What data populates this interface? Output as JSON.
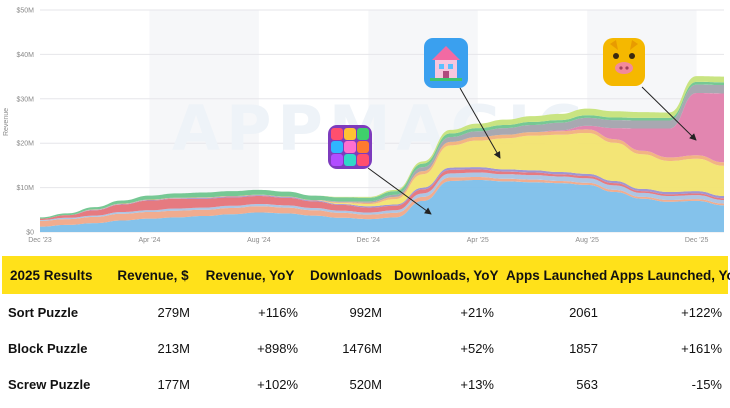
{
  "chart_data": {
    "type": "area",
    "stacked": true,
    "ylabel": "Revenue",
    "ylim": [
      0,
      50
    ],
    "yticks": [
      "$0",
      "$10M",
      "$20M",
      "$30M",
      "$40M",
      "$50M"
    ],
    "xticks": [
      "Dec '23",
      "Apr '24",
      "Aug '24",
      "Dec '24",
      "Apr '25",
      "Aug '25",
      "Dec '25"
    ],
    "watermark": "APPMAGIC",
    "grid": true,
    "x": [
      "Dec '23",
      "Jan '24",
      "Feb '24",
      "Mar '24",
      "Apr '24",
      "May '24",
      "Jun '24",
      "Jul '24",
      "Aug '24",
      "Sep '24",
      "Oct '24",
      "Nov '24",
      "Dec '24",
      "Jan '25",
      "Feb '25",
      "Mar '25",
      "Apr '25",
      "May '25",
      "Jun '25",
      "Jul '25",
      "Aug '25",
      "Sep '25",
      "Oct '25",
      "Nov '25",
      "Dec '25",
      "Jan '26"
    ],
    "series": [
      {
        "color": "#7dbfea",
        "values": [
          1.2,
          1.6,
          2.0,
          2.6,
          3.0,
          3.3,
          3.6,
          4.0,
          4.4,
          4.2,
          3.7,
          3.2,
          2.9,
          3.3,
          7.0,
          11.5,
          11.7,
          11.4,
          11.2,
          11.0,
          10.6,
          9.0,
          7.5,
          6.8,
          7.0,
          6.0
        ]
      },
      {
        "color": "#f0a889",
        "values": [
          1.3,
          1.3,
          1.4,
          1.5,
          1.5,
          1.5,
          1.4,
          1.4,
          1.4,
          1.3,
          1.2,
          1.1,
          1.0,
          1.0,
          0.9,
          0.8,
          0.7,
          0.6,
          0.6,
          0.5,
          0.5,
          0.5,
          0.4,
          0.4,
          0.4,
          0.4
        ]
      },
      {
        "color": "#a9c3e3",
        "values": [
          0.2,
          0.3,
          0.3,
          0.4,
          0.4,
          0.5,
          0.5,
          0.5,
          0.5,
          0.5,
          0.5,
          0.5,
          0.5,
          0.6,
          0.8,
          0.9,
          1.0,
          1.0,
          1.0,
          1.0,
          1.0,
          1.0,
          0.9,
          0.9,
          0.9,
          0.8
        ]
      },
      {
        "color": "#e57379",
        "values": [
          0.3,
          0.6,
          1.2,
          1.7,
          2.2,
          2.2,
          2.0,
          1.9,
          1.8,
          1.7,
          1.5,
          1.3,
          1.1,
          1.0,
          0.9,
          0.8,
          0.7,
          0.6,
          0.6,
          0.5,
          0.5,
          0.5,
          0.4,
          0.4,
          0.4,
          0.4
        ]
      },
      {
        "color": "#9b90d0",
        "values": [
          0.0,
          0.0,
          0.1,
          0.1,
          0.1,
          0.1,
          0.2,
          0.2,
          0.2,
          0.2,
          0.2,
          0.2,
          0.3,
          0.3,
          0.4,
          0.5,
          0.5,
          0.5,
          0.5,
          0.5,
          0.5,
          0.5,
          0.5,
          0.5,
          0.5,
          0.5
        ]
      },
      {
        "color": "#f2e46f",
        "values": [
          0.0,
          0.0,
          0.0,
          0.0,
          0.0,
          0.0,
          0.0,
          0.0,
          0.0,
          0.0,
          0.0,
          0.2,
          0.5,
          1.2,
          3.0,
          5.0,
          6.0,
          7.0,
          7.8,
          8.4,
          9.2,
          8.6,
          7.8,
          7.0,
          7.3,
          6.8
        ]
      },
      {
        "color": "#f1b07c",
        "values": [
          0.0,
          0.0,
          0.1,
          0.1,
          0.1,
          0.1,
          0.1,
          0.1,
          0.1,
          0.1,
          0.1,
          0.2,
          0.3,
          0.5,
          0.7,
          0.8,
          0.8,
          0.8,
          0.8,
          0.8,
          0.8,
          0.8,
          0.8,
          0.8,
          0.8,
          0.8
        ]
      },
      {
        "color": "#e07fac",
        "values": [
          0.0,
          0.0,
          0.0,
          0.0,
          0.0,
          0.0,
          0.0,
          0.0,
          0.0,
          0.0,
          0.0,
          0.0,
          0.0,
          0.0,
          0.0,
          0.0,
          0.0,
          0.0,
          0.0,
          0.2,
          0.8,
          2.5,
          5.0,
          6.5,
          14.0,
          15.5
        ]
      },
      {
        "color": "#a3a3ad",
        "values": [
          0.0,
          0.0,
          0.0,
          0.0,
          0.0,
          0.0,
          0.0,
          0.0,
          0.0,
          0.0,
          0.0,
          0.2,
          0.3,
          0.5,
          0.9,
          1.1,
          1.3,
          1.5,
          1.6,
          1.7,
          1.8,
          1.8,
          1.8,
          1.8,
          1.9,
          1.9
        ]
      },
      {
        "color": "#6fc58e",
        "values": [
          0.3,
          0.4,
          0.5,
          0.7,
          0.9,
          1.0,
          1.1,
          1.1,
          1.1,
          1.1,
          1.0,
          0.9,
          0.8,
          0.8,
          0.8,
          0.8,
          0.7,
          0.7,
          0.7,
          0.6,
          0.6,
          0.6,
          0.6,
          0.6,
          0.6,
          0.6
        ]
      },
      {
        "color": "#c6e37a",
        "values": [
          0.0,
          0.0,
          0.0,
          0.0,
          0.0,
          0.0,
          0.0,
          0.0,
          0.0,
          0.0,
          0.0,
          0.1,
          0.2,
          0.3,
          0.5,
          0.8,
          1.0,
          1.2,
          1.3,
          1.4,
          1.5,
          1.4,
          1.3,
          1.2,
          1.3,
          1.3
        ]
      }
    ]
  },
  "annotations": {
    "app1_icon": "colorful-blocks-app-icon",
    "app2_icon": "house-app-icon",
    "app3_icon": "piggy-app-icon"
  },
  "table": {
    "headers": [
      "2025 Results",
      "Revenue, $",
      "Revenue, YoY",
      "Downloads",
      "Downloads, YoY",
      "Apps Launched",
      "Apps Launched, YoY"
    ],
    "rows": [
      [
        "Sort Puzzle",
        "279M",
        "+116%",
        "992M",
        "+21%",
        "2061",
        "+122%"
      ],
      [
        "Block Puzzle",
        "213M",
        "+898%",
        "1476M",
        "+52%",
        "1857",
        "+161%"
      ],
      [
        "Screw Puzzle",
        "177M",
        "+102%",
        "520M",
        "+13%",
        "563",
        "-15%"
      ]
    ]
  }
}
